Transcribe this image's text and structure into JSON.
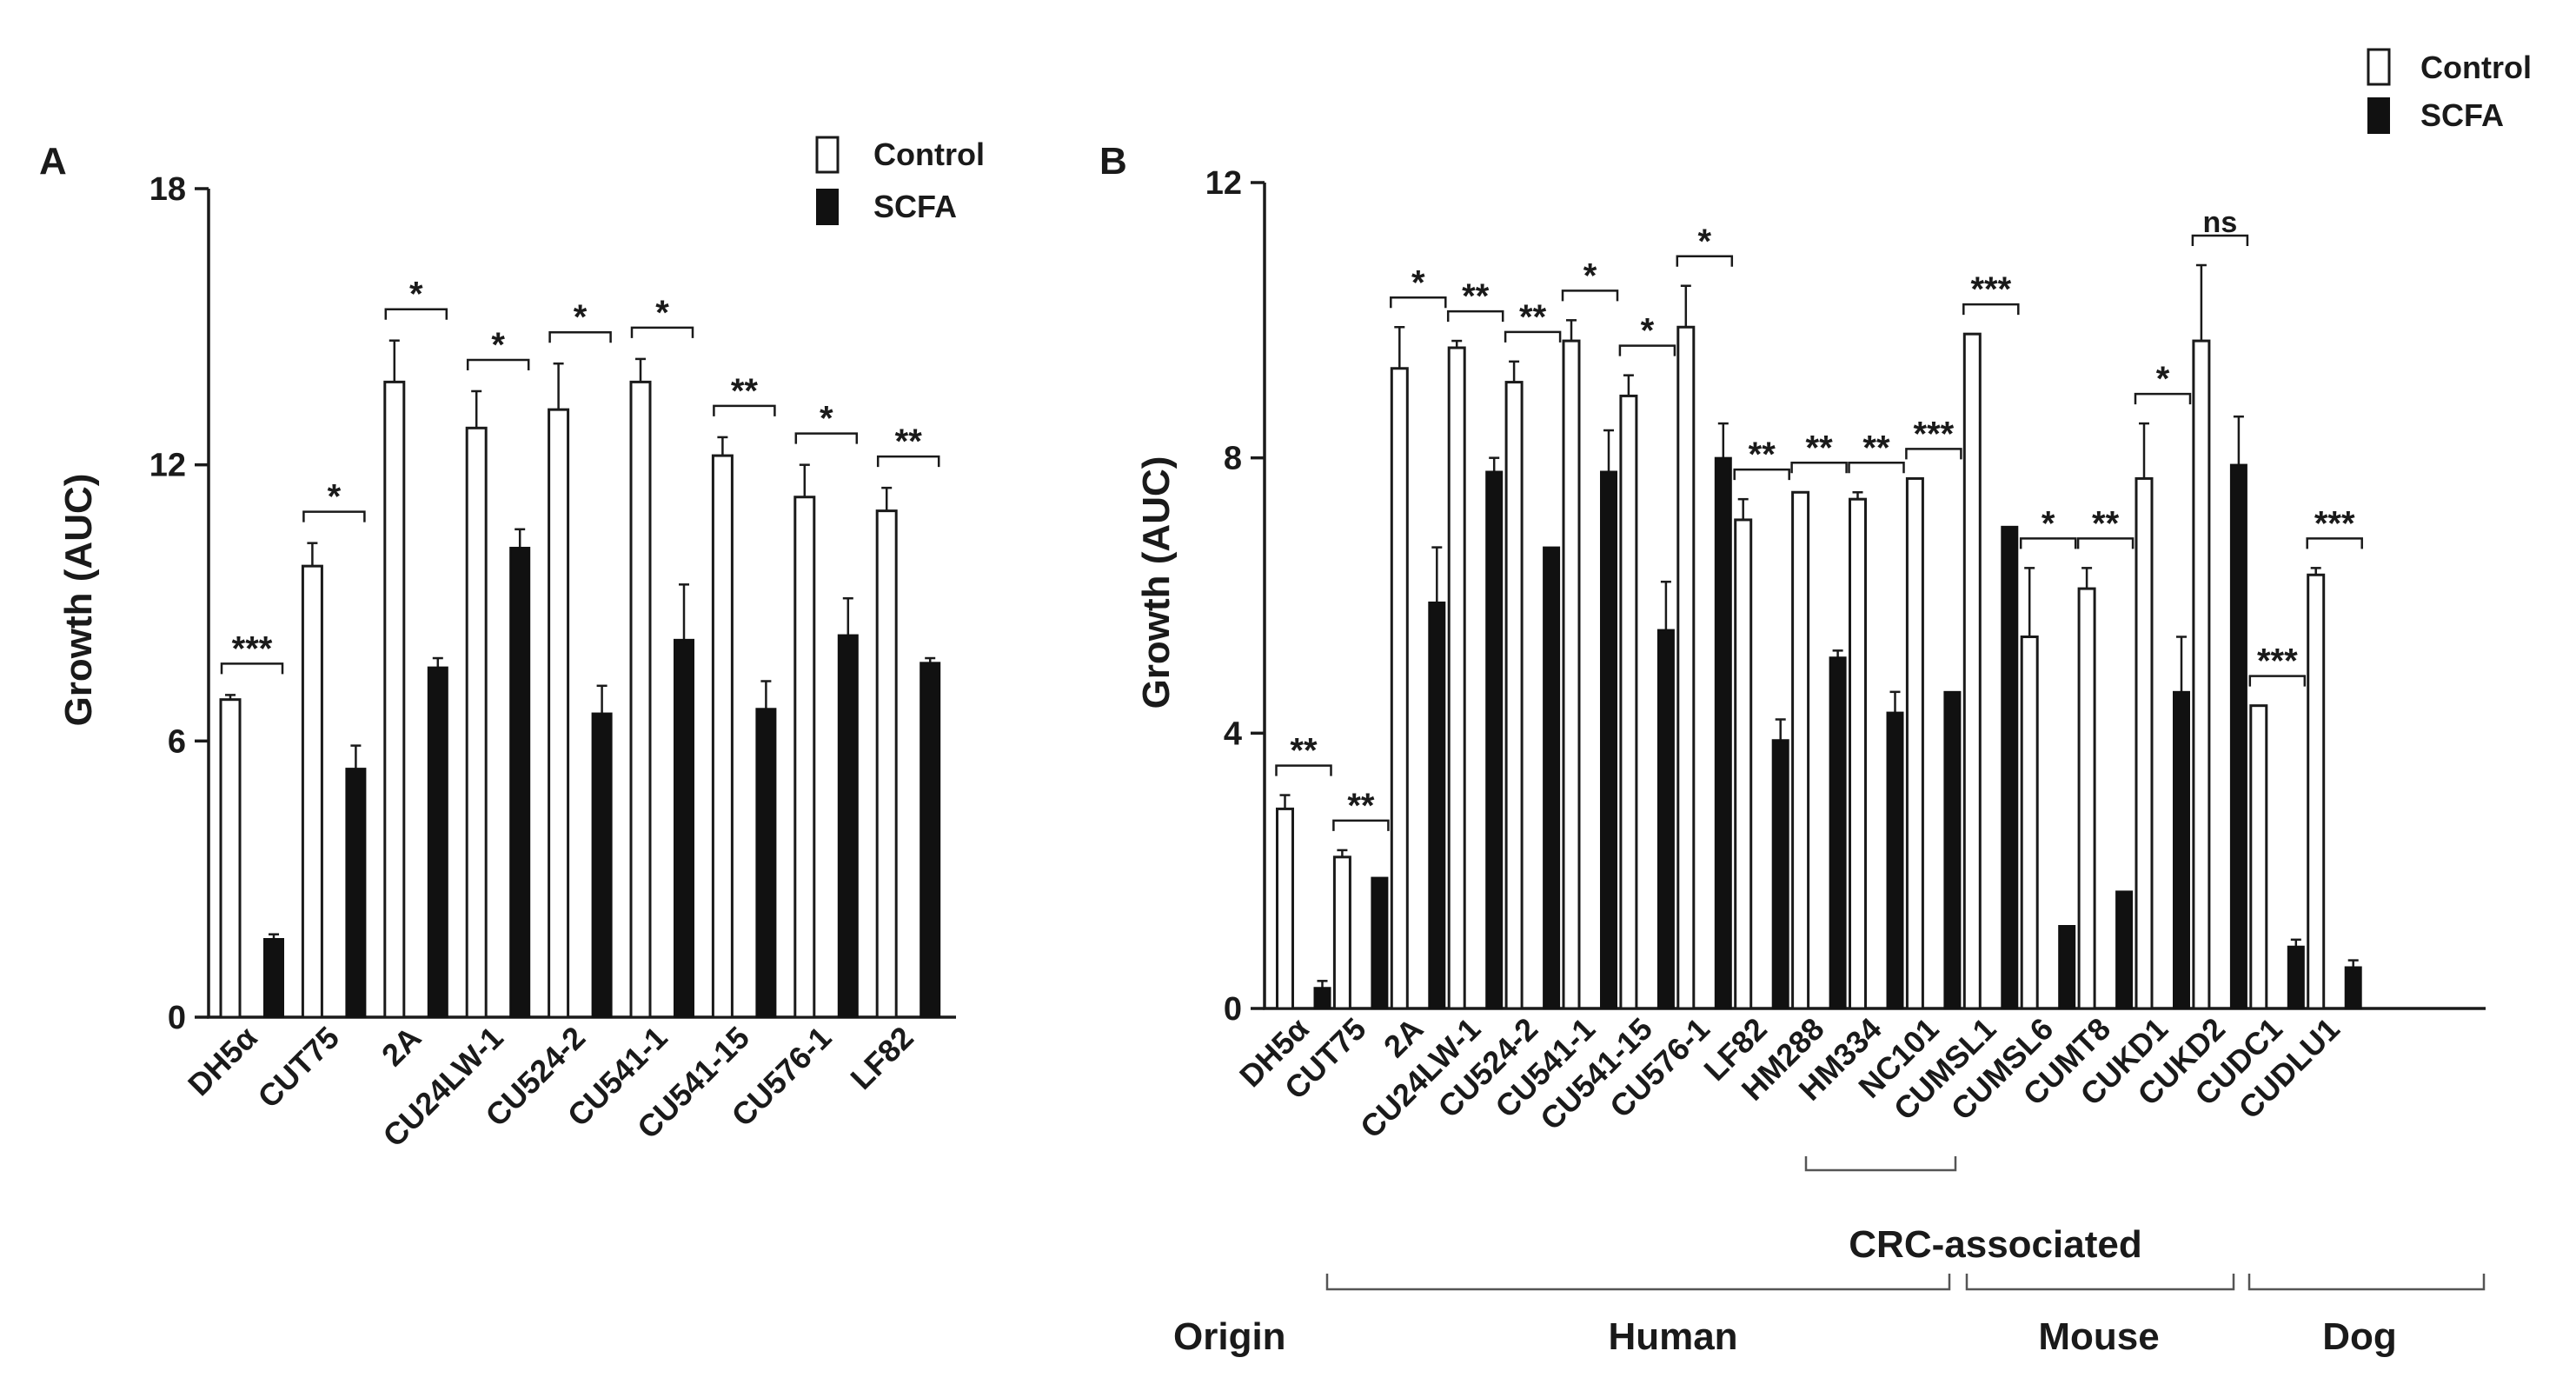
{
  "chart_data": [
    {
      "type": "bar",
      "panel": "A",
      "ylabel": "Growth (AUC)",
      "ylim": [
        0,
        18
      ],
      "yticks": [
        0,
        6,
        12,
        18
      ],
      "legend": [
        "Control",
        "SCFA"
      ],
      "legend_position": "top-right",
      "categories": [
        "DH5α",
        "CUT75",
        "2A",
        "CU24LW-1",
        "CU524-2",
        "CU541-1",
        "CU541-15",
        "CU576-1",
        "LF82"
      ],
      "series": [
        {
          "name": "Control",
          "values": [
            6.9,
            9.8,
            13.8,
            12.8,
            13.2,
            13.8,
            12.2,
            11.3,
            11.0
          ],
          "errors": [
            0.1,
            0.5,
            0.9,
            0.8,
            1.0,
            0.5,
            0.4,
            0.7,
            0.5
          ]
        },
        {
          "name": "SCFA",
          "values": [
            1.7,
            5.4,
            7.6,
            10.2,
            6.6,
            8.2,
            6.7,
            8.3,
            7.7
          ],
          "errors": [
            0.1,
            0.5,
            0.2,
            0.4,
            0.6,
            1.2,
            0.6,
            0.8,
            0.1
          ]
        }
      ],
      "significance": [
        "***",
        "*",
        "*",
        "*",
        "*",
        "*",
        "**",
        "*",
        "**"
      ]
    },
    {
      "type": "bar",
      "panel": "B",
      "ylabel": "Growth (AUC)",
      "ylim": [
        0,
        12
      ],
      "yticks": [
        0,
        4,
        8,
        12
      ],
      "legend": [
        "Control",
        "SCFA"
      ],
      "legend_position": "top-right",
      "categories": [
        "DH5α",
        "CUT75",
        "2A",
        "CU24LW-1",
        "CU524-2",
        "CU541-1",
        "CU541-15",
        "CU576-1",
        "LF82",
        "HM288",
        "HM334",
        "NC101",
        "CUMSL1",
        "CUMSL6",
        "CUMT8",
        "CUKD1",
        "CUKD2",
        "CUDC1",
        "CUDLU1"
      ],
      "series": [
        {
          "name": "Control",
          "values": [
            2.9,
            2.2,
            9.3,
            9.6,
            9.1,
            9.7,
            8.9,
            9.9,
            7.1,
            7.5,
            7.4,
            7.7,
            9.8,
            5.4,
            6.1,
            7.7,
            9.7,
            4.4,
            6.3
          ],
          "errors": [
            0.2,
            0.1,
            0.6,
            0.1,
            0.3,
            0.3,
            0.3,
            0.6,
            0.3,
            0.0,
            0.1,
            0.0,
            0.0,
            1.0,
            0.3,
            0.8,
            1.1,
            0.0,
            0.1
          ]
        },
        {
          "name": "SCFA",
          "values": [
            0.3,
            1.9,
            5.9,
            7.8,
            6.7,
            7.8,
            5.5,
            8.0,
            3.9,
            5.1,
            4.3,
            4.6,
            7.0,
            1.2,
            1.7,
            4.6,
            7.9,
            0.9,
            0.6
          ],
          "errors": [
            0.1,
            0.0,
            0.8,
            0.2,
            0.0,
            0.6,
            0.7,
            0.5,
            0.3,
            0.1,
            0.3,
            0.0,
            0.0,
            0.0,
            0.0,
            0.8,
            0.7,
            0.1,
            0.1
          ]
        }
      ],
      "significance": [
        "**",
        "**",
        "*",
        "**",
        "**",
        "*",
        "*",
        "*",
        "**",
        "**",
        "**",
        "***",
        "***",
        "*",
        "**",
        "*",
        "ns",
        "***",
        "***"
      ],
      "crc_label": "CRC-associated",
      "origin_label": "Origin",
      "origin_groups": [
        "Human",
        "Mouse",
        "Dog"
      ]
    }
  ]
}
